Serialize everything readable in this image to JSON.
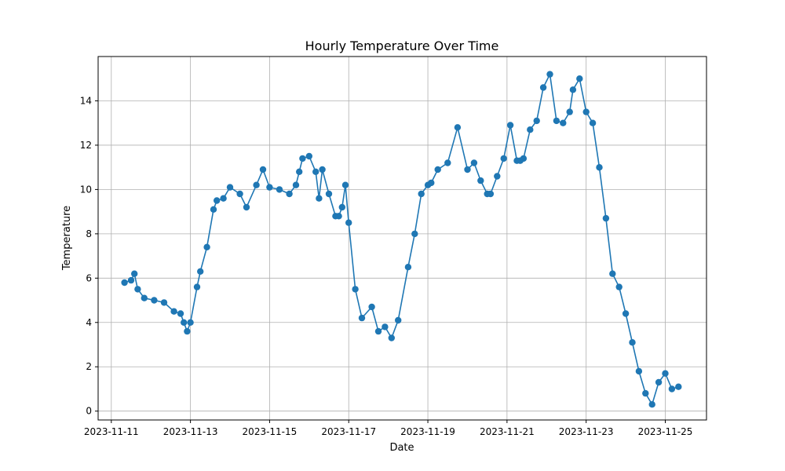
{
  "chart_data": {
    "type": "line",
    "title": "Hourly Temperature Over Time",
    "xlabel": "Date",
    "ylabel": "Temperature",
    "xlim": [
      "2023-11-10 16:00",
      "2023-11-26 01:00"
    ],
    "ylim": [
      -0.4,
      16
    ],
    "xticks": [
      "2023-11-11",
      "2023-11-13",
      "2023-11-15",
      "2023-11-17",
      "2023-11-19",
      "2023-11-21",
      "2023-11-23",
      "2023-11-25"
    ],
    "yticks": [
      0,
      2,
      4,
      6,
      8,
      10,
      12,
      14
    ],
    "grid": true,
    "marker": "circle",
    "color": "#1f77b4",
    "series": [
      {
        "x": [
          "2023-11-11 08:00",
          "2023-11-11 12:00",
          "2023-11-11 14:00",
          "2023-11-11 16:00",
          "2023-11-11 20:00",
          "2023-11-12 02:00",
          "2023-11-12 08:00",
          "2023-11-12 14:00",
          "2023-11-12 18:00",
          "2023-11-12 20:00",
          "2023-11-12 22:00",
          "2023-11-13 00:00",
          "2023-11-13 04:00",
          "2023-11-13 06:00",
          "2023-11-13 10:00",
          "2023-11-13 14:00",
          "2023-11-13 16:00",
          "2023-11-13 20:00",
          "2023-11-14 00:00",
          "2023-11-14 06:00",
          "2023-11-14 10:00",
          "2023-11-14 16:00",
          "2023-11-14 20:00",
          "2023-11-15 00:00",
          "2023-11-15 06:00",
          "2023-11-15 12:00",
          "2023-11-15 16:00",
          "2023-11-15 18:00",
          "2023-11-15 20:00",
          "2023-11-16 00:00",
          "2023-11-16 04:00",
          "2023-11-16 06:00",
          "2023-11-16 08:00",
          "2023-11-16 12:00",
          "2023-11-16 16:00",
          "2023-11-16 18:00",
          "2023-11-16 20:00",
          "2023-11-16 22:00",
          "2023-11-17 00:00",
          "2023-11-17 04:00",
          "2023-11-17 08:00",
          "2023-11-17 14:00",
          "2023-11-17 18:00",
          "2023-11-17 22:00",
          "2023-11-18 02:00",
          "2023-11-18 06:00",
          "2023-11-18 12:00",
          "2023-11-18 16:00",
          "2023-11-18 20:00",
          "2023-11-19 00:00",
          "2023-11-19 02:00",
          "2023-11-19 06:00",
          "2023-11-19 12:00",
          "2023-11-19 18:00",
          "2023-11-20 00:00",
          "2023-11-20 04:00",
          "2023-11-20 08:00",
          "2023-11-20 12:00",
          "2023-11-20 14:00",
          "2023-11-20 18:00",
          "2023-11-20 22:00",
          "2023-11-21 02:00",
          "2023-11-21 06:00",
          "2023-11-21 08:00",
          "2023-11-21 10:00",
          "2023-11-21 14:00",
          "2023-11-21 18:00",
          "2023-11-21 22:00",
          "2023-11-22 02:00",
          "2023-11-22 06:00",
          "2023-11-22 10:00",
          "2023-11-22 14:00",
          "2023-11-22 16:00",
          "2023-11-22 20:00",
          "2023-11-23 00:00",
          "2023-11-23 04:00",
          "2023-11-23 08:00",
          "2023-11-23 12:00",
          "2023-11-23 16:00",
          "2023-11-23 20:00",
          "2023-11-24 00:00",
          "2023-11-24 04:00",
          "2023-11-24 08:00",
          "2023-11-24 12:00",
          "2023-11-24 16:00",
          "2023-11-24 20:00",
          "2023-11-25 00:00",
          "2023-11-25 04:00",
          "2023-11-25 08:00"
        ],
        "y": [
          5.8,
          5.9,
          6.2,
          5.5,
          5.1,
          5.0,
          4.9,
          4.5,
          4.4,
          4.0,
          3.6,
          4.0,
          5.6,
          6.3,
          7.4,
          9.1,
          9.5,
          9.6,
          10.1,
          9.8,
          9.2,
          10.2,
          10.9,
          10.1,
          10.0,
          9.8,
          10.2,
          10.8,
          11.4,
          11.5,
          10.8,
          9.6,
          10.9,
          9.8,
          8.8,
          8.8,
          9.2,
          10.2,
          8.5,
          5.5,
          4.2,
          4.7,
          3.6,
          3.8,
          3.3,
          4.1,
          6.5,
          8.0,
          9.8,
          10.2,
          10.3,
          10.9,
          11.2,
          12.8,
          10.9,
          11.2,
          10.4,
          9.8,
          9.8,
          10.6,
          11.4,
          12.9,
          11.3,
          11.3,
          11.4,
          12.7,
          13.1,
          14.6,
          15.2,
          13.1,
          13.0,
          13.5,
          14.5,
          15.0,
          13.5,
          13.0,
          11.0,
          8.7,
          6.2,
          5.6,
          4.4,
          3.1,
          1.8,
          0.8,
          0.3,
          1.3,
          1.7,
          1.0,
          1.1
        ]
      }
    ]
  }
}
